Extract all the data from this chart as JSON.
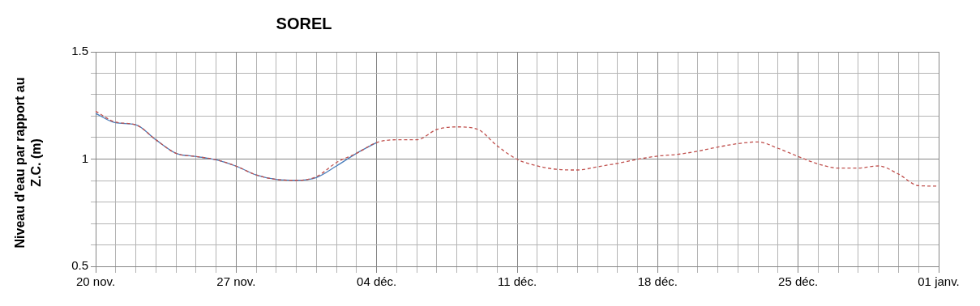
{
  "chart_data": {
    "type": "line",
    "title": "SOREL",
    "ylabel": "Niveau d'eau par rapport au Z.C. (m)",
    "categories": [
      "20 nov.",
      null,
      null,
      null,
      null,
      null,
      null,
      "27 nov.",
      null,
      null,
      null,
      null,
      null,
      null,
      "04 déc.",
      null,
      null,
      null,
      null,
      null,
      null,
      "11 déc.",
      null,
      null,
      null,
      null,
      null,
      null,
      "18 déc.",
      null,
      null,
      null,
      null,
      null,
      null,
      "25 déc.",
      null,
      null,
      null,
      null,
      null,
      null,
      "01 janv."
    ],
    "series": [
      {
        "color": "#4a7ebb",
        "line_style": "solid",
        "values": [
          1.213,
          1.169,
          1.16,
          1.09,
          1.027,
          1.012,
          0.997,
          0.967,
          0.926,
          0.905,
          0.901,
          0.914,
          0.968,
          1.027,
          1.077,
          null,
          null,
          null,
          null,
          null,
          null,
          null,
          null,
          null,
          null,
          null,
          null,
          null,
          null,
          null,
          null,
          null,
          null,
          null,
          null,
          null,
          null,
          null,
          null,
          null,
          null,
          null,
          null
        ]
      },
      {
        "color": "#c0504d",
        "line_style": "dashed",
        "values": [
          1.223,
          1.172,
          1.16,
          1.09,
          1.027,
          1.012,
          0.997,
          0.967,
          0.926,
          0.905,
          0.901,
          0.918,
          0.984,
          1.027,
          1.077,
          1.09,
          1.09,
          1.138,
          1.15,
          1.14,
          1.062,
          0.999,
          0.968,
          0.952,
          0.949,
          0.964,
          0.98,
          0.999,
          1.014,
          1.022,
          1.037,
          1.056,
          1.072,
          1.08,
          1.05,
          1.012,
          0.977,
          0.958,
          0.958,
          0.968,
          0.93,
          0.876,
          0.874
        ]
      }
    ],
    "ylim": [
      0.5,
      1.5
    ],
    "yticks": [
      0.5,
      {
        "value": 0.6,
        "label": null
      },
      {
        "value": 0.7,
        "label": null
      },
      {
        "value": 0.8,
        "label": null
      },
      {
        "value": 0.9,
        "label": null
      },
      1,
      {
        "value": 1.1,
        "label": null
      },
      {
        "value": 1.2,
        "label": null
      },
      {
        "value": 1.3,
        "label": null
      },
      {
        "value": 1.4,
        "label": null
      },
      1.5
    ],
    "grid": true,
    "marker": "none"
  }
}
